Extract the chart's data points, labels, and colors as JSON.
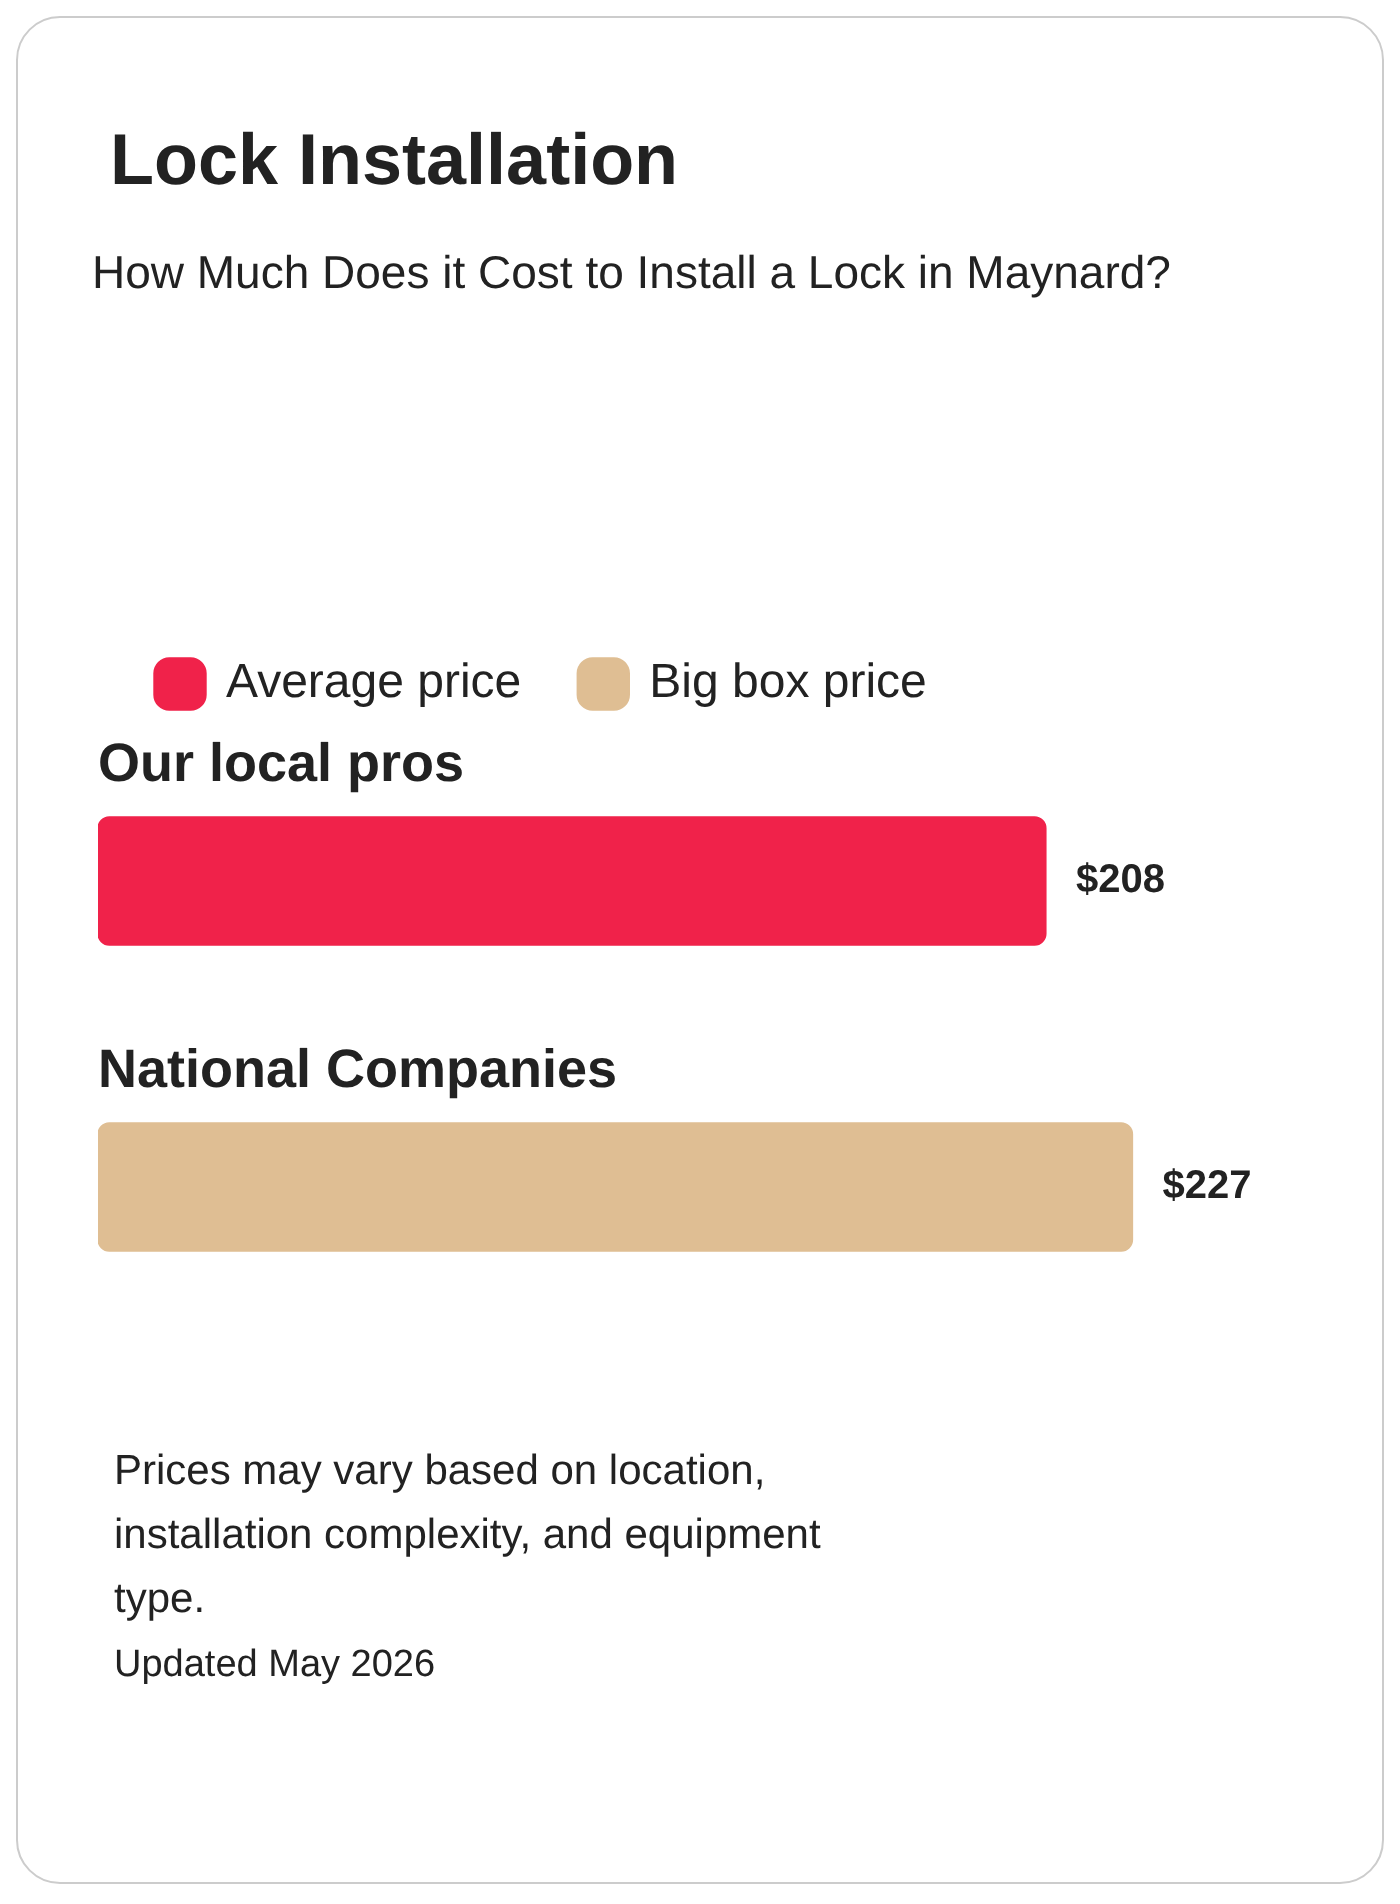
{
  "chart_data": {
    "type": "bar",
    "orientation": "horizontal",
    "title": "Lock Installation",
    "subtitle": "How Much Does it Cost to Install a Lock in Maynard?",
    "categories": [
      "Our local pros",
      "National Companies"
    ],
    "series": [
      {
        "name": "Average price",
        "color": "#f0224a",
        "values": [
          208,
          null
        ],
        "value_labels": [
          "$208",
          null
        ]
      },
      {
        "name": "Big box price",
        "color": "#dfbe93",
        "values": [
          null,
          227
        ],
        "value_labels": [
          null,
          "$227"
        ]
      }
    ],
    "legend": "top left",
    "annotations": [
      "Prices may vary based on location, installation complexity, and equipment type.",
      "Updated May 2026"
    ]
  }
}
